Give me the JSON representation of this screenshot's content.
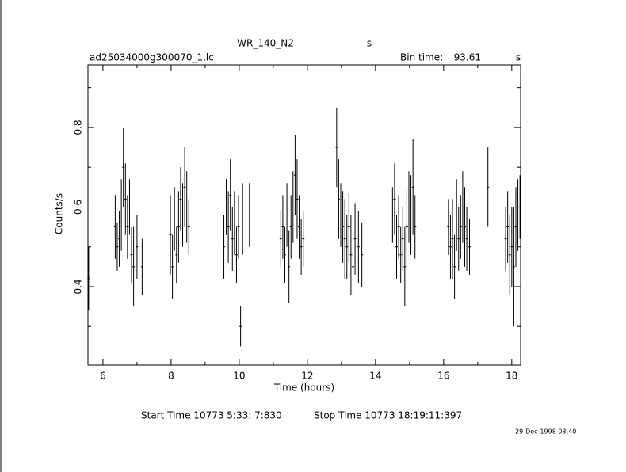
{
  "chart_data": {
    "type": "errorbar",
    "title": "WR_140_N2",
    "title_unit": "s",
    "filename": "ad25034000g300070_1.lc",
    "bin_time_label": "Bin time:",
    "bin_time": "93.61",
    "bin_time_unit": "s",
    "x_label": "Time (hours)",
    "y_label": "Counts/s",
    "start_time": "Start Time 10773  5:33: 7:830",
    "stop_time": "Stop Time 10773 18:19:11:397",
    "date": "29-Dec-1998 03:40",
    "xlim": [
      5.56,
      18.26
    ],
    "ylim": [
      0.203,
      0.957
    ],
    "xticks": [
      6,
      8,
      10,
      12,
      14,
      16,
      18
    ],
    "xminorticks": [
      7,
      9,
      11,
      13,
      15,
      17
    ],
    "yticks": [
      0.4,
      0.6,
      0.8
    ],
    "yminorticks": [
      0.3,
      0.5,
      0.7,
      0.9
    ],
    "color": "#000000",
    "x": [
      5.58,
      6.36,
      6.42,
      6.48,
      6.54,
      6.6,
      6.66,
      6.72,
      6.78,
      6.84,
      6.9,
      7.0,
      7.15,
      7.98,
      8.04,
      8.1,
      8.16,
      8.22,
      8.28,
      8.34,
      8.4,
      8.46,
      8.52,
      9.55,
      9.62,
      9.68,
      9.74,
      9.8,
      9.86,
      9.92,
      9.98,
      10.04,
      10.1,
      10.2,
      10.3,
      11.22,
      11.28,
      11.34,
      11.4,
      11.46,
      11.52,
      11.58,
      11.64,
      11.7,
      11.76,
      11.82,
      11.88,
      12.86,
      12.92,
      12.98,
      13.04,
      13.1,
      13.16,
      13.22,
      13.28,
      13.34,
      13.4,
      13.5,
      13.6,
      14.5,
      14.56,
      14.62,
      14.68,
      14.74,
      14.8,
      14.86,
      14.92,
      14.98,
      15.04,
      15.1,
      15.16,
      16.14,
      16.2,
      16.26,
      16.32,
      16.38,
      16.44,
      16.5,
      16.56,
      16.62,
      16.68,
      16.76,
      17.3,
      17.82,
      17.88,
      17.94,
      18.0,
      18.06,
      18.12,
      18.18,
      18.24
    ],
    "values": [
      0.42,
      0.55,
      0.5,
      0.52,
      0.58,
      0.7,
      0.62,
      0.55,
      0.6,
      0.48,
      0.45,
      0.5,
      0.45,
      0.53,
      0.45,
      0.57,
      0.48,
      0.55,
      0.62,
      0.58,
      0.65,
      0.6,
      0.55,
      0.5,
      0.6,
      0.55,
      0.63,
      0.52,
      0.56,
      0.48,
      0.55,
      0.3,
      0.57,
      0.6,
      0.58,
      0.52,
      0.55,
      0.48,
      0.58,
      0.45,
      0.55,
      0.6,
      0.68,
      0.62,
      0.55,
      0.5,
      0.52,
      0.75,
      0.62,
      0.58,
      0.55,
      0.52,
      0.5,
      0.55,
      0.48,
      0.45,
      0.52,
      0.5,
      0.48,
      0.58,
      0.62,
      0.5,
      0.55,
      0.48,
      0.52,
      0.45,
      0.55,
      0.6,
      0.58,
      0.65,
      0.55,
      0.55,
      0.5,
      0.52,
      0.45,
      0.58,
      0.52,
      0.55,
      0.6,
      0.55,
      0.52,
      0.5,
      0.65,
      0.52,
      0.55,
      0.48,
      0.5,
      0.45,
      0.55,
      0.58,
      0.6
    ],
    "errors": [
      0.08,
      0.08,
      0.06,
      0.07,
      0.09,
      0.1,
      0.09,
      0.08,
      0.07,
      0.07,
      0.1,
      0.08,
      0.07,
      0.1,
      0.08,
      0.08,
      0.07,
      0.09,
      0.08,
      0.08,
      0.1,
      0.09,
      0.07,
      0.08,
      0.07,
      0.09,
      0.09,
      0.08,
      0.08,
      0.07,
      0.08,
      0.05,
      0.09,
      0.09,
      0.08,
      0.07,
      0.08,
      0.07,
      0.08,
      0.09,
      0.08,
      0.09,
      0.1,
      0.1,
      0.08,
      0.07,
      0.07,
      0.1,
      0.1,
      0.08,
      0.09,
      0.1,
      0.08,
      0.09,
      0.1,
      0.08,
      0.09,
      0.09,
      0.08,
      0.07,
      0.09,
      0.08,
      0.08,
      0.07,
      0.08,
      0.1,
      0.1,
      0.09,
      0.1,
      0.12,
      0.08,
      0.07,
      0.08,
      0.1,
      0.08,
      0.09,
      0.08,
      0.08,
      0.09,
      0.1,
      0.08,
      0.07,
      0.1,
      0.08,
      0.09,
      0.1,
      0.1,
      0.15,
      0.1,
      0.09,
      0.08
    ]
  }
}
